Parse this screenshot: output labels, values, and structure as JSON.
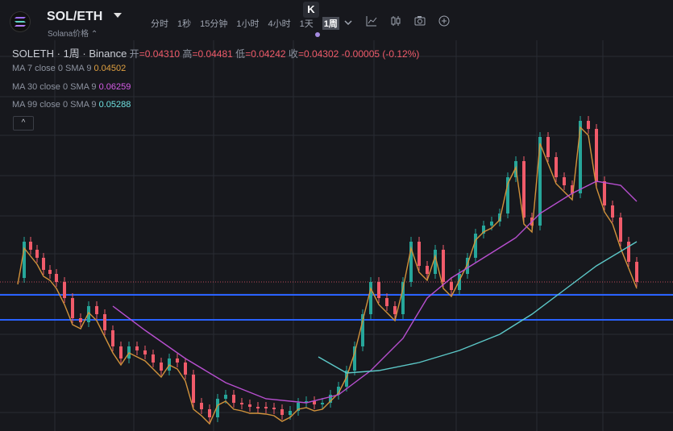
{
  "header": {
    "pair": "SOL/ETH",
    "subname": "Solana价格 ⌃",
    "k_badge": "K",
    "intervals": [
      "分时",
      "1秒",
      "15分钟",
      "1小时",
      "4小时",
      "1天",
      "1周"
    ],
    "active_interval": "1周"
  },
  "legend": {
    "symbol": "SOLETH · 1周 · Binance",
    "open_label": "开",
    "open": "=0.04310",
    "high_label": "高",
    "high": "=0.04481",
    "low_label": "低",
    "low": "=0.04242",
    "close_label": "收",
    "close": "=0.04302",
    "change": "-0.00005 (-0.12%)",
    "ma7_label": "MA 7 close 0 SMA 9",
    "ma7_value": "0.04502",
    "ma30_label": "MA 30 close 0 SMA 9",
    "ma30_value": "0.06259",
    "ma99_label": "MA 99 close 0 SMA 9",
    "ma99_value": "0.05288",
    "collapse_icon": "^"
  },
  "colors": {
    "up": "#26a69a",
    "down": "#f05b6a",
    "ma7": "#d1923b",
    "ma30": "#b84fd0",
    "ma99": "#5cc8c8",
    "hline": "#2962ff",
    "background": "#17181d"
  },
  "icons": [
    "chevron-down-icon",
    "indicator-icon",
    "candle-style-icon",
    "camera-icon",
    "add-icon"
  ],
  "chart_data": {
    "type": "candlestick",
    "series": [
      {
        "name": "MA 7",
        "value": 0.04502
      },
      {
        "name": "MA 30",
        "value": 0.06259
      },
      {
        "name": "MA 99",
        "value": 0.05288
      }
    ],
    "last": {
      "open": 0.0431,
      "high": 0.04481,
      "low": 0.04242,
      "close": 0.04302
    }
  }
}
